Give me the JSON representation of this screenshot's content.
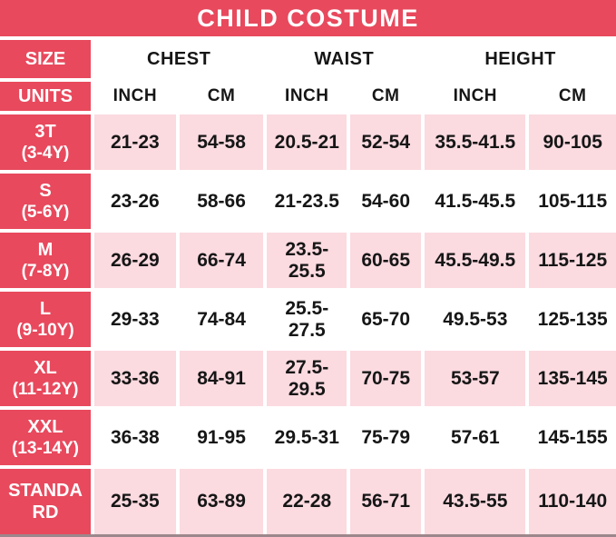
{
  "title": "CHILD COSTUME",
  "colors": {
    "header_red": "#e8495d",
    "row_pink": "#fbdae0",
    "row_white": "#ffffff",
    "text_dark": "#161616",
    "text_white": "#ffffff"
  },
  "header": {
    "size_label": "SIZE",
    "units_label": "UNITS",
    "groups": [
      "CHEST",
      "WAIST",
      "HEIGHT"
    ],
    "units": [
      "INCH",
      "CM",
      "INCH",
      "CM",
      "INCH",
      "CM"
    ]
  },
  "chart_data": {
    "type": "table",
    "title": "CHILD COSTUME",
    "columns": [
      "SIZE",
      "CHEST INCH",
      "CHEST CM",
      "WAIST INCH",
      "WAIST CM",
      "HEIGHT INCH",
      "HEIGHT CM"
    ],
    "rows": [
      {
        "size": "3T",
        "age": "(3-4Y)",
        "chest_inch": "21-23",
        "chest_cm": "54-58",
        "waist_inch": "20.5-21",
        "waist_cm": "52-54",
        "height_inch": "35.5-41.5",
        "height_cm": "90-105"
      },
      {
        "size": "S",
        "age": "(5-6Y)",
        "chest_inch": "23-26",
        "chest_cm": "58-66",
        "waist_inch": "21-23.5",
        "waist_cm": "54-60",
        "height_inch": "41.5-45.5",
        "height_cm": "105-115"
      },
      {
        "size": "M",
        "age": "(7-8Y)",
        "chest_inch": "26-29",
        "chest_cm": "66-74",
        "waist_inch": "23.5-25.5",
        "waist_cm": "60-65",
        "height_inch": "45.5-49.5",
        "height_cm": "115-125"
      },
      {
        "size": "L",
        "age": "(9-10Y)",
        "chest_inch": "29-33",
        "chest_cm": "74-84",
        "waist_inch": "25.5-27.5",
        "waist_cm": "65-70",
        "height_inch": "49.5-53",
        "height_cm": "125-135"
      },
      {
        "size": "XL",
        "age": "(11-12Y)",
        "chest_inch": "33-36",
        "chest_cm": "84-91",
        "waist_inch": "27.5-29.5",
        "waist_cm": "70-75",
        "height_inch": "53-57",
        "height_cm": "135-145"
      },
      {
        "size": "XXL",
        "age": "(13-14Y)",
        "chest_inch": "36-38",
        "chest_cm": "91-95",
        "waist_inch": "29.5-31",
        "waist_cm": "75-79",
        "height_inch": "57-61",
        "height_cm": "145-155"
      },
      {
        "size": "STANDARD",
        "age": "",
        "chest_inch": "25-35",
        "chest_cm": "63-89",
        "waist_inch": "22-28",
        "waist_cm": "56-71",
        "height_inch": "43.5-55",
        "height_cm": "110-140"
      }
    ]
  }
}
